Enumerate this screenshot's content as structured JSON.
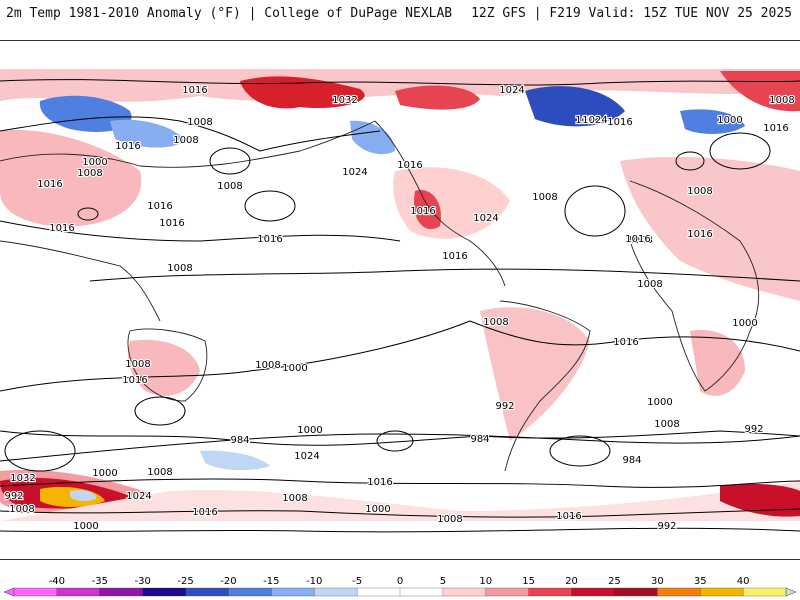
{
  "header": {
    "left_title": "2m Temp 1981-2010 Anomaly (°F) | College of DuPage NEXLAB",
    "right_title": "12Z GFS | F219 Valid: 15Z TUE NOV 25 2025"
  },
  "isobar_labels": [
    {
      "text": "1016"
    },
    {
      "text": "1032"
    },
    {
      "text": "1024"
    },
    {
      "text": "1008"
    },
    {
      "text": "1016"
    },
    {
      "text": "1008"
    },
    {
      "text": "1016"
    },
    {
      "text": "1024"
    },
    {
      "text": "1016"
    },
    {
      "text": "1000"
    },
    {
      "text": "1000"
    },
    {
      "text": "1008"
    },
    {
      "text": "1016"
    },
    {
      "text": "1016"
    },
    {
      "text": "1008"
    },
    {
      "text": "1016"
    },
    {
      "text": "1016"
    },
    {
      "text": "1016"
    },
    {
      "text": "1008"
    },
    {
      "text": "1024"
    },
    {
      "text": "1016"
    },
    {
      "text": "1024"
    },
    {
      "text": "1008"
    },
    {
      "text": "1008"
    },
    {
      "text": "1016"
    },
    {
      "text": "1016"
    },
    {
      "text": "1008"
    },
    {
      "text": "1016"
    },
    {
      "text": "1008"
    },
    {
      "text": "1016"
    },
    {
      "text": "1008"
    },
    {
      "text": "1016"
    },
    {
      "text": "1008"
    },
    {
      "text": "1016"
    },
    {
      "text": "1008"
    },
    {
      "text": "1016"
    },
    {
      "text": "1000"
    },
    {
      "text": "1008"
    },
    {
      "text": "1000"
    },
    {
      "text": "992"
    },
    {
      "text": "1000"
    },
    {
      "text": "1008"
    },
    {
      "text": "992"
    },
    {
      "text": "984"
    },
    {
      "text": "1000"
    },
    {
      "text": "984"
    },
    {
      "text": "984"
    },
    {
      "text": "1024"
    },
    {
      "text": "1016"
    },
    {
      "text": "1032"
    },
    {
      "text": "1000"
    },
    {
      "text": "1008"
    },
    {
      "text": "1024"
    },
    {
      "text": "992"
    },
    {
      "text": "1008"
    },
    {
      "text": "1000"
    },
    {
      "text": "1016"
    },
    {
      "text": "1008"
    },
    {
      "text": "1000"
    },
    {
      "text": "1008"
    },
    {
      "text": "1016"
    },
    {
      "text": "992"
    }
  ],
  "legend": {
    "ticks": [
      "-40",
      "-35",
      "-30",
      "-25",
      "-20",
      "-15",
      "-10",
      "-5",
      "0",
      "5",
      "10",
      "15",
      "20",
      "25",
      "30",
      "35",
      "40"
    ],
    "colors": [
      "#ff66ff",
      "#d033d0",
      "#8c16a6",
      "#1a0a8c",
      "#2d4dbf",
      "#4f7fe0",
      "#86aef0",
      "#c0d6f5",
      "#ffffff",
      "#ffffff",
      "#ffd0d0",
      "#f59aa0",
      "#e64450",
      "#c8102a",
      "#a01020",
      "#f57f0a",
      "#f5b400",
      "#fff06a"
    ]
  }
}
